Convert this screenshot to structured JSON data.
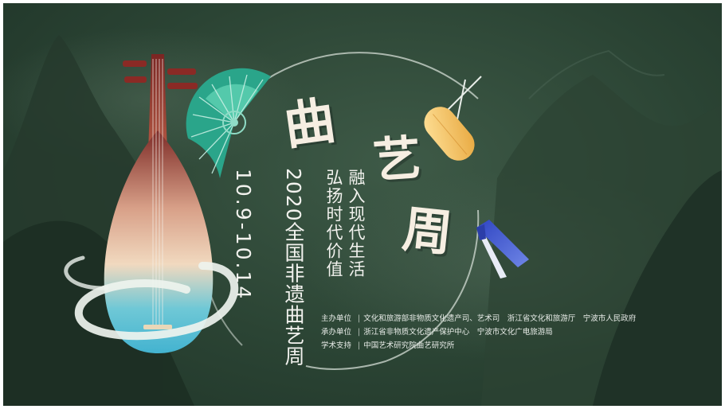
{
  "title": {
    "characters": [
      "曲",
      "艺",
      "周"
    ]
  },
  "slogan": {
    "line1": "融入现代生活",
    "line2": "弘扬时代价值"
  },
  "event_name": "2020全国非遗曲艺周",
  "event_dates": "10.9-10.14",
  "credits": {
    "organizer": {
      "label": "主办单位",
      "value": "文化和旅游部非物质文化遗产司、艺术司　浙江省文化和旅游厅　宁波市人民政府"
    },
    "undertaker": {
      "label": "承办单位",
      "value": "浙江省非物质文化遗产保护中心　宁波市文化广电旅游局"
    },
    "support": {
      "label": "学术支持",
      "value": "中国艺术研究院曲艺研究所"
    }
  },
  "icons": [
    "pipa-icon",
    "folding-fan-icon",
    "clapper-board-icon",
    "blue-clapper-icon",
    "mountain-background"
  ],
  "colors": {
    "background": "#2b4434",
    "title": "#f6eee2",
    "fan": "#2aa58a",
    "pipa_top": "#7a2a26",
    "pipa_bottom": "#4fc0d8",
    "clapper": "#f0c060",
    "blue_clapper": "#3d55c8"
  }
}
